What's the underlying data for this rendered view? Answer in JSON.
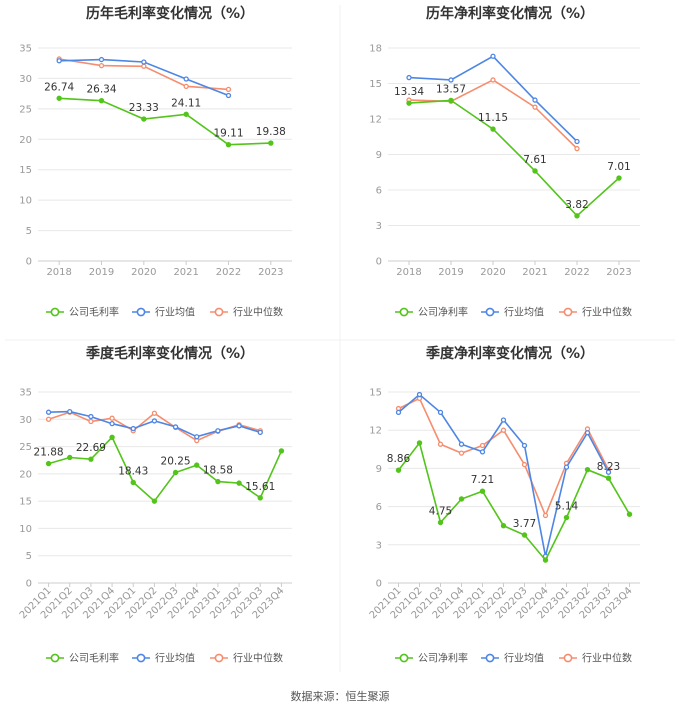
{
  "source_label": "数据来源：恒生聚源",
  "colors": {
    "company": "#52c41a",
    "industry_avg": "#4e86e4",
    "industry_median": "#f58d6e",
    "axis_text": "#999999",
    "grid": "#e8e8e8",
    "title": "#333333"
  },
  "chart_data": [
    {
      "type": "line",
      "title": "历年毛利率变化情况（%）",
      "categories": [
        "2018",
        "2019",
        "2020",
        "2021",
        "2022",
        "2023"
      ],
      "ylim": [
        0,
        35
      ],
      "yticks": [
        0,
        5,
        10,
        15,
        20,
        25,
        30,
        35
      ],
      "grid": true,
      "legend_position": "bottom",
      "series": [
        {
          "name": "公司毛利率",
          "values": [
            26.74,
            26.34,
            23.33,
            24.11,
            19.11,
            19.38
          ],
          "labels": [
            "26.74",
            "26.34",
            "23.33",
            "24.11",
            "19.11",
            "19.38"
          ]
        },
        {
          "name": "行业均值",
          "values": [
            32.9,
            33.1,
            32.7,
            29.9,
            27.2,
            null
          ]
        },
        {
          "name": "行业中位数",
          "values": [
            33.2,
            32.1,
            32.0,
            28.7,
            28.2,
            null
          ]
        }
      ]
    },
    {
      "type": "line",
      "title": "历年净利率变化情况（%）",
      "categories": [
        "2018",
        "2019",
        "2020",
        "2021",
        "2022",
        "2023"
      ],
      "ylim": [
        0,
        18
      ],
      "yticks": [
        0,
        3,
        6,
        9,
        12,
        15,
        18
      ],
      "grid": true,
      "legend_position": "bottom",
      "series": [
        {
          "name": "公司净利率",
          "values": [
            13.34,
            13.57,
            11.15,
            7.61,
            3.82,
            7.01
          ],
          "labels": [
            "13.34",
            "13.57",
            "11.15",
            "7.61",
            "3.82",
            "7.01"
          ]
        },
        {
          "name": "行业均值",
          "values": [
            15.5,
            15.3,
            17.3,
            13.6,
            10.1,
            null
          ]
        },
        {
          "name": "行业中位数",
          "values": [
            13.6,
            13.5,
            15.3,
            13.0,
            9.5,
            null
          ]
        }
      ]
    },
    {
      "type": "line",
      "title": "季度毛利率变化情况（%）",
      "categories": [
        "2021Q1",
        "2021Q2",
        "2021Q3",
        "2021Q4",
        "2022Q1",
        "2022Q2",
        "2022Q3",
        "2022Q4",
        "2023Q1",
        "2023Q2",
        "2023Q3",
        "2023Q4"
      ],
      "ylim": [
        0,
        35
      ],
      "yticks": [
        0,
        5,
        10,
        15,
        20,
        25,
        30,
        35
      ],
      "grid": true,
      "legend_position": "bottom",
      "series": [
        {
          "name": "公司毛利率",
          "values": [
            21.88,
            23.0,
            22.69,
            26.7,
            18.43,
            15.0,
            20.25,
            21.6,
            18.58,
            18.3,
            15.61,
            24.2
          ],
          "labels": [
            "21.88",
            "",
            "22.69",
            "",
            "18.43",
            "",
            "20.25",
            "",
            "18.58",
            "",
            "15.61",
            ""
          ]
        },
        {
          "name": "行业均值",
          "values": [
            31.3,
            31.4,
            30.5,
            29.2,
            28.3,
            29.7,
            28.6,
            26.8,
            27.9,
            28.8,
            27.6,
            null
          ]
        },
        {
          "name": "行业中位数",
          "values": [
            30.0,
            31.3,
            29.6,
            30.2,
            27.9,
            31.1,
            28.5,
            26.1,
            27.8,
            29.0,
            27.9,
            null
          ]
        }
      ]
    },
    {
      "type": "line",
      "title": "季度净利率变化情况（%）",
      "categories": [
        "2021Q1",
        "2021Q2",
        "2021Q3",
        "2021Q4",
        "2022Q1",
        "2022Q2",
        "2022Q3",
        "2022Q4",
        "2023Q1",
        "2023Q2",
        "2023Q3",
        "2023Q4"
      ],
      "ylim": [
        0,
        15
      ],
      "yticks": [
        0,
        3,
        6,
        9,
        12,
        15
      ],
      "grid": true,
      "legend_position": "bottom",
      "series": [
        {
          "name": "公司净利率",
          "values": [
            8.86,
            11.0,
            4.75,
            6.6,
            7.21,
            4.5,
            3.77,
            1.8,
            5.14,
            8.9,
            8.23,
            5.4
          ],
          "labels": [
            "8.86",
            "",
            "4.75",
            "",
            "7.21",
            "",
            "3.77",
            "",
            "5.14",
            "",
            "8.23",
            ""
          ]
        },
        {
          "name": "行业均值",
          "values": [
            13.4,
            14.8,
            13.4,
            10.9,
            10.3,
            12.8,
            10.8,
            2.1,
            9.1,
            11.8,
            8.7,
            null
          ]
        },
        {
          "name": "行业中位数",
          "values": [
            13.7,
            14.5,
            10.9,
            10.2,
            10.8,
            12.0,
            9.3,
            5.3,
            9.4,
            12.1,
            8.9,
            null
          ]
        }
      ]
    }
  ]
}
